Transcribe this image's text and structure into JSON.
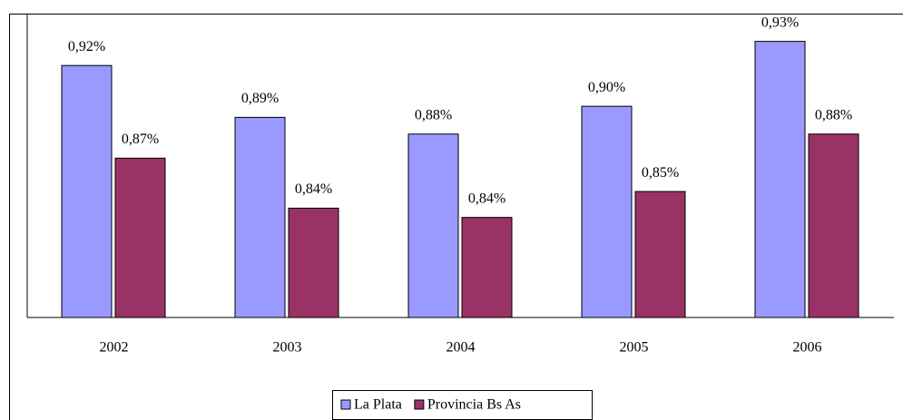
{
  "chart_data": {
    "type": "bar",
    "categories": [
      "2002",
      "2003",
      "2004",
      "2005",
      "2006"
    ],
    "series": [
      {
        "name": "La Plata",
        "color": "#9999ff",
        "values": [
          0.921,
          0.893,
          0.884,
          0.899,
          0.934
        ],
        "value_labels": [
          "0,92%",
          "0,89%",
          "0,88%",
          "0,90%",
          "0,93%"
        ]
      },
      {
        "name": "Provincia Bs As",
        "color": "#993366",
        "values": [
          0.871,
          0.844,
          0.839,
          0.853,
          0.884
        ],
        "value_labels": [
          "0,87%",
          "0,84%",
          "0,84%",
          "0,85%",
          "0,88%"
        ]
      }
    ],
    "ylim": [
      0.785,
      0.949
    ],
    "legend": "bottom"
  }
}
